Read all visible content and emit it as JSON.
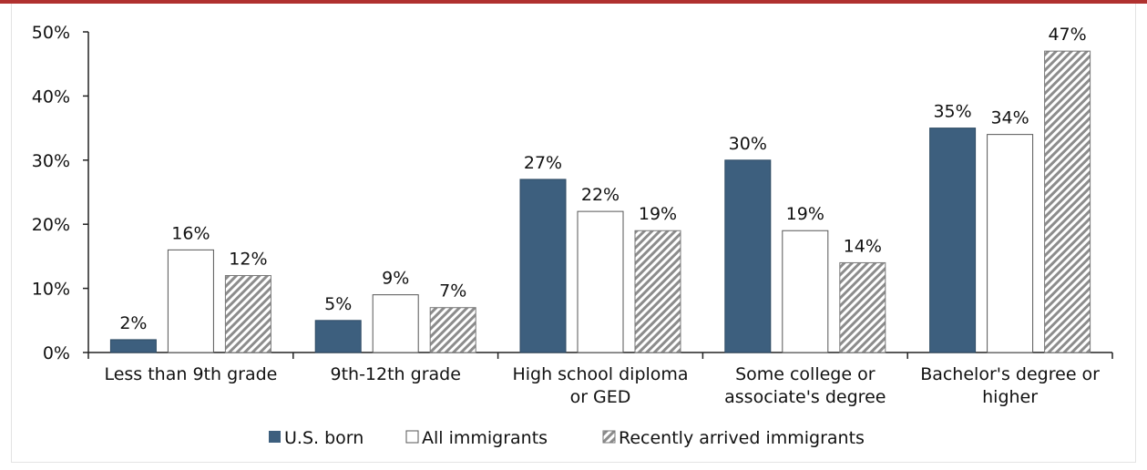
{
  "chart_data": {
    "type": "bar",
    "title": "",
    "xlabel": "",
    "ylabel": "",
    "ylim": [
      0,
      50
    ],
    "yticks": [
      "0%",
      "10%",
      "20%",
      "30%",
      "40%",
      "50%"
    ],
    "categories": [
      [
        "Less than 9th grade"
      ],
      [
        "9th-12th grade"
      ],
      [
        "High school diploma",
        "or GED"
      ],
      [
        "Some college or",
        "associate's degree"
      ],
      [
        "Bachelor's degree or",
        "higher"
      ]
    ],
    "series": [
      {
        "name": "U.S. born",
        "values": [
          2,
          5,
          27,
          30,
          35
        ],
        "labels": [
          "2%",
          "5%",
          "27%",
          "30%",
          "35%"
        ],
        "color": "#3d5f7e",
        "style": "solid"
      },
      {
        "name": "All immigrants",
        "values": [
          16,
          9,
          22,
          19,
          34
        ],
        "labels": [
          "16%",
          "9%",
          "22%",
          "19%",
          "34%"
        ],
        "color": "#ffffff",
        "style": "outline"
      },
      {
        "name": "Recently arrived immigrants",
        "values": [
          12,
          7,
          19,
          14,
          47
        ],
        "labels": [
          "12%",
          "7%",
          "19%",
          "14%",
          "47%"
        ],
        "color": "#9a9a9a",
        "style": "hatched"
      }
    ],
    "grid": false,
    "legend": "bottom"
  }
}
